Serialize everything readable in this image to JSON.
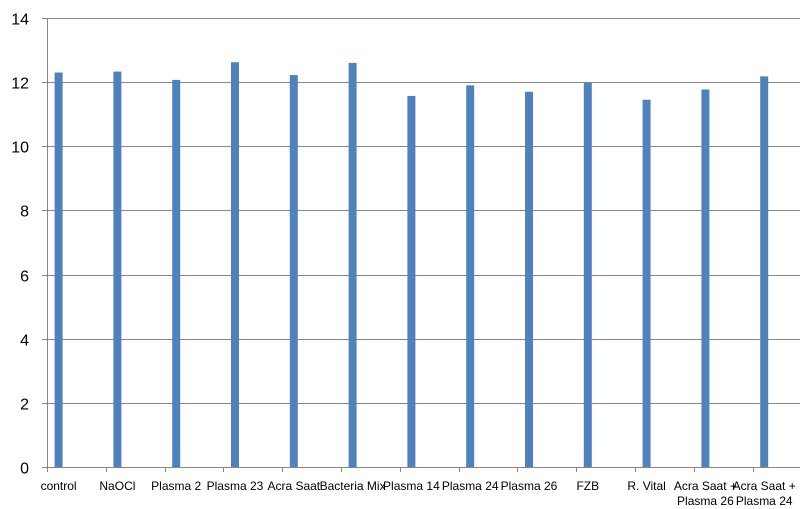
{
  "chart_data": {
    "type": "bar",
    "categories": [
      "control",
      "NaOCl",
      "Plasma 2",
      "Plasma 23",
      "Acra Saat",
      "Bacteria Mix",
      "Plasma 14",
      "Plasma 24",
      "Plasma 26",
      "FZB",
      "R. Vital",
      "Acra Saat + Plasma 26",
      "Acra Saat + Plasma 24"
    ],
    "category_lines": [
      [
        "control"
      ],
      [
        "NaOCl"
      ],
      [
        "Plasma 2"
      ],
      [
        "Plasma 23"
      ],
      [
        "Acra Saat"
      ],
      [
        "Bacteria Mix"
      ],
      [
        "Plasma 14"
      ],
      [
        "Plasma 24"
      ],
      [
        "Plasma 26"
      ],
      [
        "FZB"
      ],
      [
        "R. Vital"
      ],
      [
        "Acra Saat +",
        "Plasma 26"
      ],
      [
        "Acra Saat +",
        "Plasma 24"
      ]
    ],
    "series": [
      {
        "values": [
          12.3,
          12.33,
          12.07,
          12.62,
          12.22,
          12.6,
          11.57,
          11.9,
          11.7,
          11.98,
          11.45,
          11.77,
          12.18
        ]
      }
    ],
    "yticks": [
      "0",
      "2",
      "4",
      "6",
      "8",
      "10",
      "12",
      "14"
    ],
    "ylim": [
      0,
      14
    ],
    "grid": true,
    "bar_color": "#4f81bd",
    "grid_color": "#868686",
    "title": "",
    "xlabel": "",
    "ylabel": ""
  }
}
